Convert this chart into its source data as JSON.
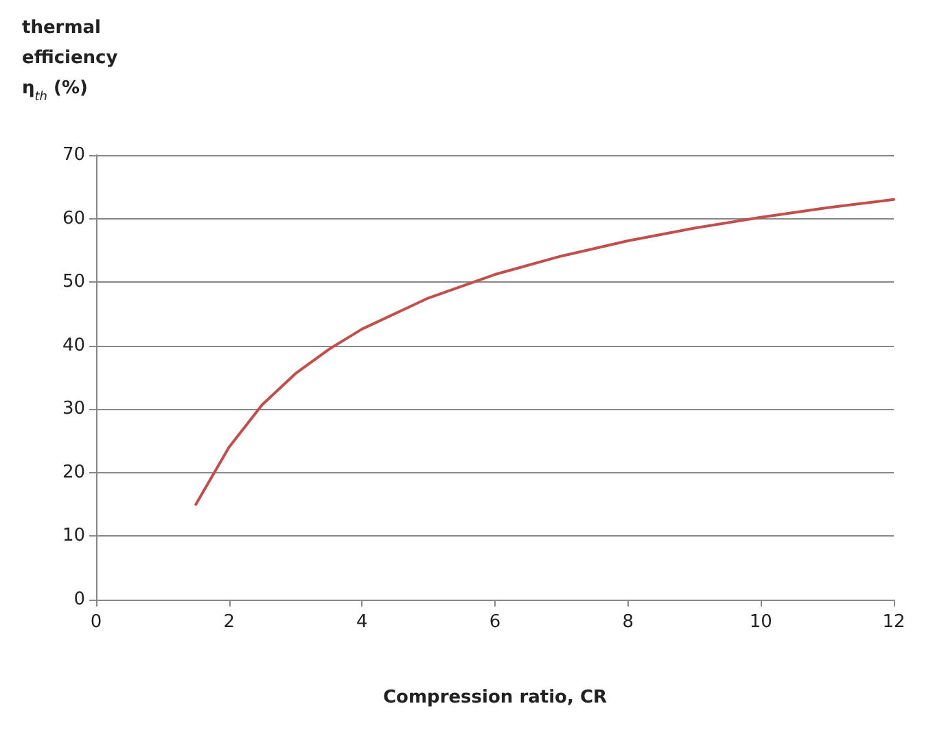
{
  "chart_data": {
    "type": "line",
    "xlabel": "Compression ratio, CR",
    "ylabel": "thermal\nefficiency\nη$_{th}$ (%)",
    "x": [
      1.5,
      2,
      2.5,
      3,
      3.5,
      4,
      5,
      6,
      7,
      8,
      9,
      10,
      11,
      12
    ],
    "series": [
      {
        "color": "#c0504d",
        "values": [
          15,
          24,
          30.7,
          35.6,
          39.4,
          42.6,
          47.5,
          51.2,
          54.1,
          56.5,
          58.5,
          60.2,
          61.7,
          63
        ]
      }
    ],
    "xlim": [
      0,
      12
    ],
    "xticks": [
      0,
      2,
      4,
      6,
      8,
      10,
      12
    ],
    "ylim": [
      0,
      70
    ],
    "yticks": [
      0,
      10,
      20,
      30,
      40,
      50,
      60,
      70
    ],
    "grid": "y",
    "marker": "none",
    "line_style": "solid"
  }
}
